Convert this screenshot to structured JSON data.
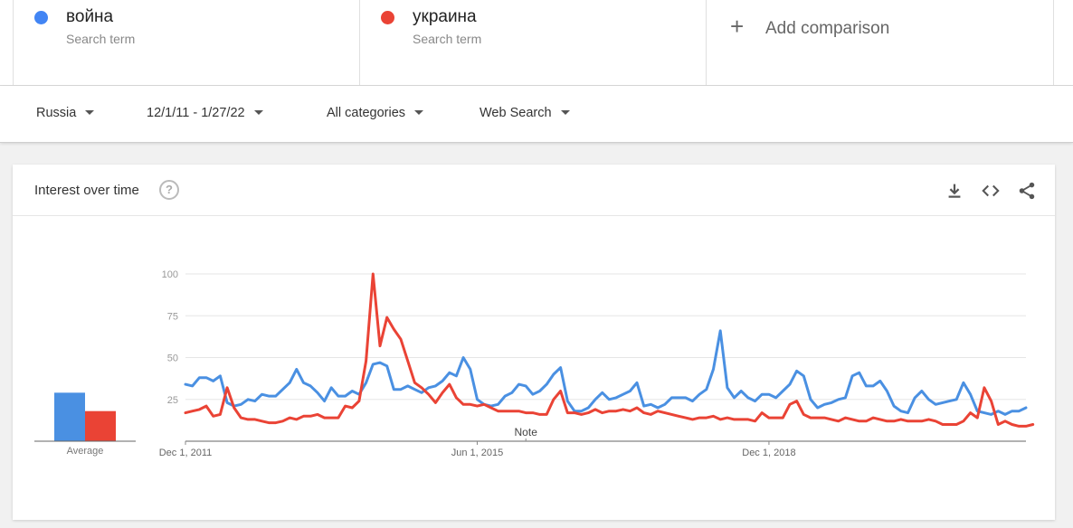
{
  "terms": [
    {
      "name": "война",
      "sub": "Search term",
      "color": "#4285f4"
    },
    {
      "name": "украина",
      "sub": "Search term",
      "color": "#ea4335"
    }
  ],
  "add_comparison": {
    "icon": "plus-icon",
    "label": "Add comparison"
  },
  "filters": {
    "region": "Russia",
    "date_range": "12/1/11 - 1/27/22",
    "category": "All categories",
    "search_type": "Web Search"
  },
  "card": {
    "title": "Interest over time",
    "icons": [
      "help-icon",
      "download-icon",
      "embed-icon",
      "share-icon"
    ]
  },
  "chart_data": {
    "type": "line",
    "title": "Interest over time",
    "x_tick_labels": [
      "Dec 1, 2011",
      "Jun 1, 2015",
      "Dec 1, 2018"
    ],
    "y_tick_labels": [
      "25",
      "50",
      "75",
      "100"
    ],
    "ylim": [
      0,
      100
    ],
    "grid": true,
    "note_label": "Note",
    "average": {
      "label": "Average",
      "values": [
        29,
        18
      ]
    },
    "series": [
      {
        "name": "война",
        "color": "#4a90e2",
        "values": [
          34,
          33,
          38,
          38,
          36,
          39,
          23,
          21,
          22,
          25,
          24,
          28,
          27,
          27,
          31,
          35,
          43,
          35,
          33,
          29,
          24,
          32,
          27,
          27,
          30,
          28,
          35,
          46,
          47,
          45,
          31,
          31,
          33,
          31,
          29,
          32,
          33,
          36,
          41,
          39,
          50,
          43,
          25,
          22,
          21,
          22,
          27,
          29,
          34,
          33,
          28,
          30,
          34,
          40,
          44,
          24,
          18,
          18,
          20,
          25,
          29,
          25,
          26,
          28,
          30,
          35,
          21,
          22,
          20,
          22,
          26,
          26,
          26,
          24,
          28,
          31,
          43,
          66,
          32,
          26,
          30,
          26,
          24,
          28,
          28,
          26,
          30,
          34,
          42,
          39,
          25,
          20,
          22,
          23,
          25,
          26,
          39,
          41,
          33,
          33,
          36,
          30,
          21,
          18,
          17,
          26,
          30,
          25,
          22,
          23,
          24,
          25,
          35,
          28,
          18,
          17,
          16,
          18,
          16,
          18,
          18,
          20
        ]
      },
      {
        "name": "украина",
        "color": "#ea4335",
        "values": [
          17,
          18,
          19,
          21,
          15,
          16,
          32,
          20,
          14,
          13,
          13,
          12,
          11,
          11,
          12,
          14,
          13,
          15,
          15,
          16,
          14,
          14,
          14,
          21,
          20,
          24,
          48,
          100,
          57,
          74,
          67,
          61,
          48,
          35,
          32,
          28,
          23,
          29,
          34,
          26,
          22,
          22,
          21,
          22,
          20,
          18,
          18,
          18,
          18,
          17,
          17,
          16,
          16,
          25,
          30,
          17,
          17,
          16,
          17,
          19,
          17,
          18,
          18,
          19,
          18,
          20,
          17,
          16,
          18,
          17,
          16,
          15,
          14,
          13,
          14,
          14,
          15,
          13,
          14,
          13,
          13,
          13,
          12,
          17,
          14,
          14,
          14,
          22,
          24,
          16,
          14,
          14,
          14,
          13,
          12,
          14,
          13,
          12,
          12,
          14,
          13,
          12,
          12,
          13,
          12,
          12,
          12,
          13,
          12,
          10,
          10,
          10,
          12,
          17,
          14,
          32,
          24,
          10,
          12,
          10,
          9,
          9,
          10
        ]
      }
    ]
  }
}
